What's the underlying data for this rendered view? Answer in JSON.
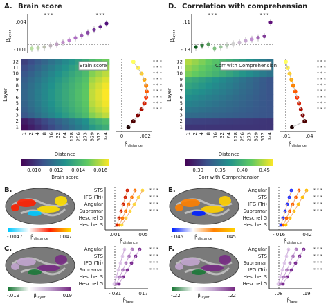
{
  "heatmap_panels": [
    {
      "label": "A.",
      "title": "Brain score",
      "top_yticks": [
        ".004",
        "-.001"
      ],
      "top_ylabel": {
        "symbol": "β",
        "sub": "layer"
      },
      "heat_ylabel": "Layer",
      "heat_yticks": [
        "1",
        "2",
        "3",
        "4",
        "5",
        "6",
        "7",
        "8",
        "9",
        "10",
        "11",
        "12"
      ],
      "heat_xticks": [
        "1",
        "2",
        "4",
        "8",
        "16",
        "32",
        "64",
        "128",
        "256",
        "273",
        "329",
        "512",
        "1024"
      ],
      "heat_xlabel": "Distance",
      "inset": "Brain score",
      "colorbar_ticks": [
        "0.010",
        "0.012",
        "0.014",
        "0.016"
      ],
      "colorbar_label": "Brain score",
      "side_xticks": [
        "0",
        ".002"
      ],
      "side_xlabel": {
        "symbol": "β",
        "sub": "distance"
      },
      "stars": "* * *"
    },
    {
      "label": "D.",
      "title": "Correlation with comprehension",
      "top_yticks": [
        ".11",
        "-.13"
      ],
      "top_ylabel": {
        "symbol": "β",
        "sub": "layer"
      },
      "heat_ylabel": "Layer",
      "heat_yticks": [
        "1",
        "2",
        "3",
        "4",
        "5",
        "6",
        "7",
        "8",
        "9",
        "10",
        "11",
        "12"
      ],
      "heat_xticks": [
        "1",
        "2",
        "4",
        "8",
        "16",
        "32",
        "64",
        "128",
        "256",
        "273",
        "329",
        "512",
        "1024"
      ],
      "heat_xlabel": "Distance",
      "inset": "Corr with Comprehension",
      "colorbar_ticks": [
        "0.30",
        "0.35",
        "0.40",
        "0.45"
      ],
      "colorbar_label": "Corr with Comprehension",
      "side_xticks": [
        "-.01",
        ".04"
      ],
      "side_xlabel": {
        "symbol": "β",
        "sub": "distance"
      },
      "stars": "* * *"
    }
  ],
  "roi_panels": [
    {
      "label": "B.",
      "colorbar_min": "-.0047",
      "colorbar_label": {
        "symbol": "β",
        "sub": "distance"
      },
      "colorbar_max": ".0047",
      "regions": [
        "STS",
        "IFG (Tri)",
        "Angular",
        "Supramar",
        "Heschel G",
        "Heschel S"
      ],
      "xticks": [
        ".001",
        ".005"
      ],
      "xlabel": {
        "symbol": "β",
        "sub": "distance"
      },
      "stars": "* * *",
      "colors": [
        "#00c8ff",
        "#ffffff",
        "#ff2000",
        "#ffe000"
      ]
    },
    {
      "label": "C.",
      "colorbar_min": "-.019",
      "colorbar_label": {
        "symbol": "β",
        "sub": "layer"
      },
      "colorbar_max": ".019",
      "regions": [
        "Angular",
        "STS",
        "IFG (Tri)",
        "Supramar",
        "Heschel S",
        "Heschel G"
      ],
      "xticks": [
        "-.031",
        ".017"
      ],
      "xlabel": {
        "symbol": "β",
        "sub": "layer"
      },
      "stars": "* * *",
      "colors": [
        "#1b7837",
        "#ffffff",
        "#c2a5cf",
        "#762a83"
      ]
    },
    {
      "label": "E.",
      "colorbar_min": "-.045",
      "colorbar_label": {
        "symbol": "β",
        "sub": "distance"
      },
      "colorbar_max": ".045",
      "regions": [
        "Angular",
        "STS",
        "IFG (Tri)",
        "Supramar",
        "Heschel G",
        "Heschel S"
      ],
      "xticks": [
        "-.016",
        ".042"
      ],
      "xlabel": {
        "symbol": "β",
        "sub": "distance"
      },
      "stars": "* * *",
      "colors": [
        "#0020ff",
        "#ffffff",
        "#ff8000",
        "#ffd000"
      ]
    },
    {
      "label": "F.",
      "colorbar_min": "-.22",
      "colorbar_label": {
        "symbol": "β",
        "sub": "layer"
      },
      "colorbar_max": ".22",
      "regions": [
        "Angular",
        "STS",
        "Supramar",
        "IFG (Tri)",
        "Heschel S",
        "Heschel G"
      ],
      "xticks": [
        ".08",
        ".19"
      ],
      "xlabel": {
        "symbol": "β",
        "sub": "layer"
      },
      "stars": "* * *",
      "colors": [
        "#1b7837",
        "#ffffff",
        "#c2a5cf",
        "#762a83"
      ]
    }
  ]
}
